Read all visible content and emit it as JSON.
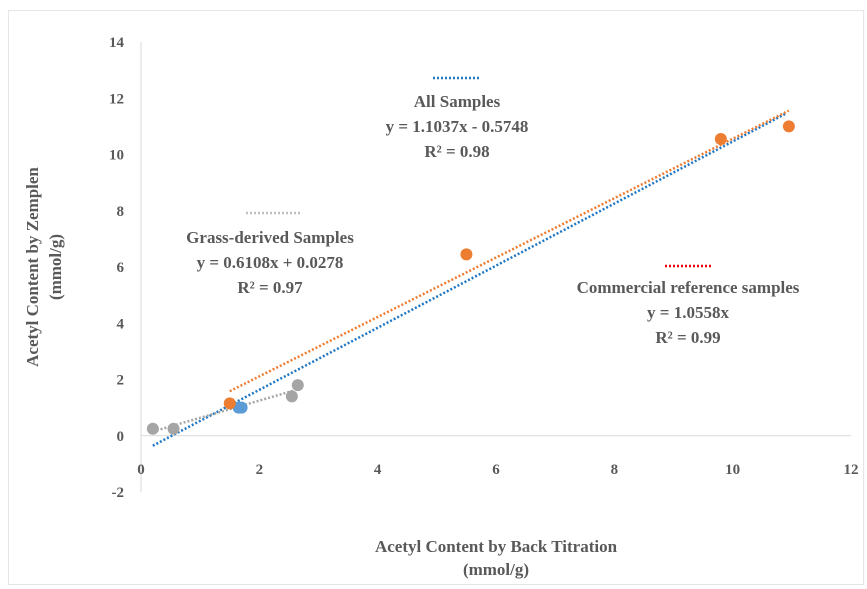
{
  "chart_data": {
    "type": "scatter",
    "title": "",
    "xlabel": [
      "Acetyl Content by Back Titration",
      "(mmol/g)"
    ],
    "ylabel": [
      "Acetyl Content by Zemplen",
      "(mmol/g)"
    ],
    "xlim": [
      0,
      12
    ],
    "ylim": [
      -2,
      14
    ],
    "xticks": [
      0,
      2,
      4,
      6,
      8,
      10,
      12
    ],
    "yticks": [
      -2,
      0,
      2,
      4,
      6,
      8,
      10,
      12,
      14
    ],
    "grid": false,
    "series": [
      {
        "color": "#a5a5a5",
        "points": [
          [
            0.2,
            0.25
          ],
          [
            0.55,
            0.25
          ],
          [
            2.55,
            1.4
          ],
          [
            2.65,
            1.8
          ]
        ]
      },
      {
        "color": "#5b9bd5",
        "points": [
          [
            1.65,
            1.0
          ],
          [
            1.7,
            1.0
          ]
        ]
      },
      {
        "color": "#ed7d31",
        "points": [
          [
            1.5,
            1.15
          ],
          [
            5.5,
            6.45
          ],
          [
            9.8,
            10.55
          ],
          [
            10.95,
            11.0
          ]
        ]
      }
    ],
    "trendlines": [
      {
        "group": "all",
        "color": "#1f77c4",
        "x_range": [
          0.2,
          10.9
        ],
        "slope": 1.1037,
        "intercept": -0.5748,
        "label_lines": [
          "All Samples",
          "y = 1.1037x - 0.5748",
          "R² = 0.98"
        ]
      },
      {
        "group": "grass",
        "color": "#a5a5a5",
        "x_range": [
          0.2,
          2.6
        ],
        "slope": 0.6108,
        "intercept": 0.0278,
        "label_lines": [
          "Grass-derived Samples",
          "y = 0.6108x + 0.0278",
          "R² = 0.97"
        ]
      },
      {
        "group": "commercial",
        "color": "#ed7d31",
        "x_range": [
          1.5,
          10.95
        ],
        "slope": 1.0558,
        "intercept": 0,
        "label_lines": [
          "Commercial reference samples",
          "y = 1.0558x",
          "R² = 0.99"
        ]
      }
    ],
    "legend_markers": [
      {
        "group": "all",
        "color": "#1f77c4"
      },
      {
        "group": "grass",
        "color": "#bfbfbf"
      },
      {
        "group": "commercial",
        "color": "#e3000f"
      }
    ]
  }
}
